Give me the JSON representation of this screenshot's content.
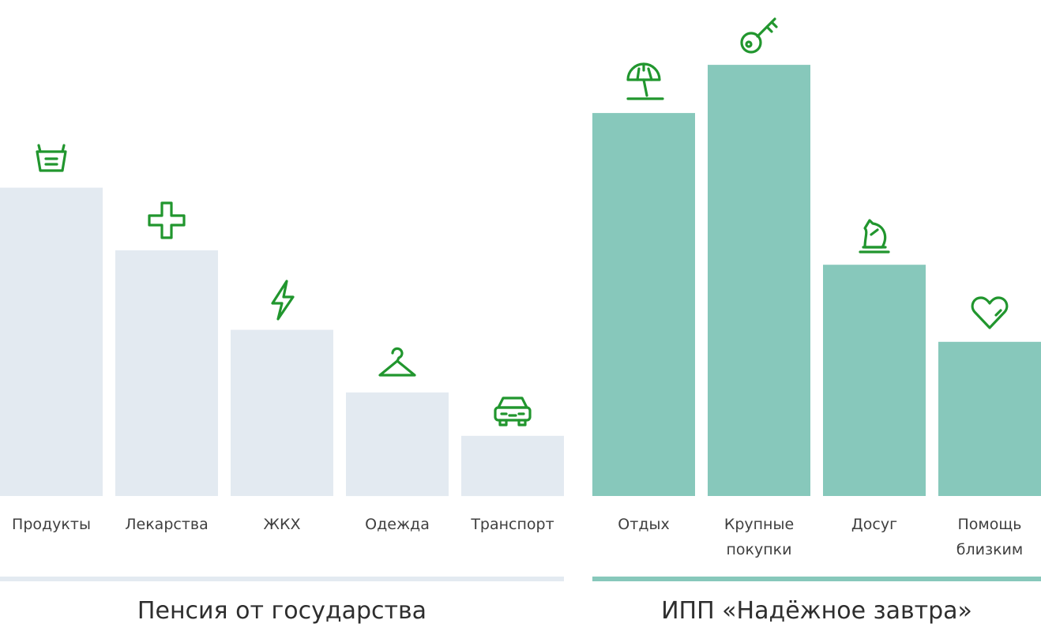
{
  "colors": {
    "pension": "#e3eaf1",
    "ipp": "#87c8bb",
    "icon": "#21962e"
  },
  "chart_data": {
    "type": "bar",
    "title": "",
    "ylim": [
      0,
      100
    ],
    "groups": [
      {
        "name": "Пенсия от государства",
        "categories": [
          {
            "label": [
              "Продукты"
            ],
            "value": 64,
            "icon": "basket-icon"
          },
          {
            "label": [
              "Лекарства"
            ],
            "value": 51,
            "icon": "medical-cross-icon"
          },
          {
            "label": [
              "ЖКХ"
            ],
            "value": 34.5,
            "icon": "lightning-icon"
          },
          {
            "label": [
              "Одежда"
            ],
            "value": 21.5,
            "icon": "hanger-icon"
          },
          {
            "label": [
              "Транспорт"
            ],
            "value": 12.5,
            "icon": "car-icon"
          }
        ]
      },
      {
        "name": "ИПП «Надёжное завтра»",
        "categories": [
          {
            "label": [
              "Отдых"
            ],
            "value": 79.5,
            "icon": "beach-umbrella-icon"
          },
          {
            "label": [
              "Крупные",
              "покупки"
            ],
            "value": 89.5,
            "icon": "key-icon"
          },
          {
            "label": [
              "Досуг"
            ],
            "value": 48,
            "icon": "chess-knight-icon"
          },
          {
            "label": [
              "Помощь",
              "близким"
            ],
            "value": 32,
            "icon": "heart-icon"
          }
        ]
      }
    ]
  }
}
